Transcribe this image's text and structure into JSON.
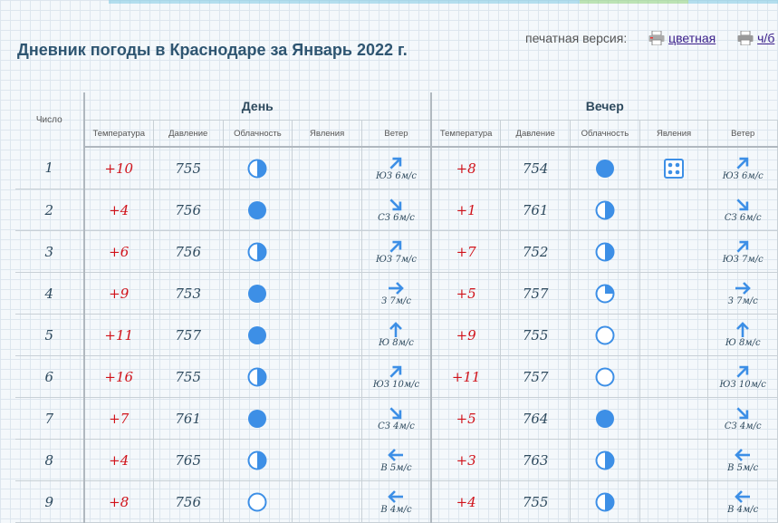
{
  "title": "Дневник погоды в Краснодаре за Январь 2022 г.",
  "print": {
    "label": "печатная версия:",
    "color_link": "цветная",
    "bw_link": "ч/б"
  },
  "headers": {
    "number": "Число",
    "day": "День",
    "evening": "Вечер",
    "temperature": "Температура",
    "pressure": "Давление",
    "cloudiness": "Облачность",
    "phenomena": "Явления",
    "wind": "Ветер"
  },
  "colors": {
    "temperature": "#d0121a",
    "icon_blue": "#3d8fe6",
    "title": "#2e5571"
  },
  "rows": [
    {
      "n": "1",
      "day": {
        "t": "+10",
        "p": "755",
        "c": "half",
        "ph": "",
        "w": "ЮЗ 6м/с",
        "d": 45
      },
      "eve": {
        "t": "+8",
        "p": "754",
        "c": "full",
        "ph": "snow",
        "w": "ЮЗ 6м/с",
        "d": 45
      }
    },
    {
      "n": "2",
      "day": {
        "t": "+4",
        "p": "756",
        "c": "full",
        "ph": "",
        "w": "СЗ 6м/с",
        "d": 135
      },
      "eve": {
        "t": "+1",
        "p": "761",
        "c": "half",
        "ph": "",
        "w": "СЗ 6м/с",
        "d": 135
      }
    },
    {
      "n": "3",
      "day": {
        "t": "+6",
        "p": "756",
        "c": "half",
        "ph": "",
        "w": "ЮЗ 7м/с",
        "d": 45
      },
      "eve": {
        "t": "+7",
        "p": "752",
        "c": "half",
        "ph": "",
        "w": "ЮЗ 7м/с",
        "d": 45
      }
    },
    {
      "n": "4",
      "day": {
        "t": "+9",
        "p": "753",
        "c": "full",
        "ph": "",
        "w": "З 7м/с",
        "d": 90
      },
      "eve": {
        "t": "+5",
        "p": "757",
        "c": "quarter",
        "ph": "",
        "w": "З 7м/с",
        "d": 90
      }
    },
    {
      "n": "5",
      "day": {
        "t": "+11",
        "p": "757",
        "c": "full",
        "ph": "",
        "w": "Ю 8м/с",
        "d": 0
      },
      "eve": {
        "t": "+9",
        "p": "755",
        "c": "clear",
        "ph": "",
        "w": "Ю 8м/с",
        "d": 0
      }
    },
    {
      "n": "6",
      "day": {
        "t": "+16",
        "p": "755",
        "c": "half",
        "ph": "",
        "w": "ЮЗ 10м/с",
        "d": 45
      },
      "eve": {
        "t": "+11",
        "p": "757",
        "c": "clear",
        "ph": "",
        "w": "ЮЗ 10м/с",
        "d": 45
      }
    },
    {
      "n": "7",
      "day": {
        "t": "+7",
        "p": "761",
        "c": "full",
        "ph": "",
        "w": "СЗ 4м/с",
        "d": 135
      },
      "eve": {
        "t": "+5",
        "p": "764",
        "c": "full",
        "ph": "",
        "w": "СЗ 4м/с",
        "d": 135
      }
    },
    {
      "n": "8",
      "day": {
        "t": "+4",
        "p": "765",
        "c": "half",
        "ph": "",
        "w": "В 5м/с",
        "d": 270
      },
      "eve": {
        "t": "+3",
        "p": "763",
        "c": "half",
        "ph": "",
        "w": "В 5м/с",
        "d": 270
      }
    },
    {
      "n": "9",
      "day": {
        "t": "+8",
        "p": "756",
        "c": "clear",
        "ph": "",
        "w": "В 4м/с",
        "d": 270
      },
      "eve": {
        "t": "+4",
        "p": "755",
        "c": "half",
        "ph": "",
        "w": "В 4м/с",
        "d": 270
      }
    }
  ]
}
